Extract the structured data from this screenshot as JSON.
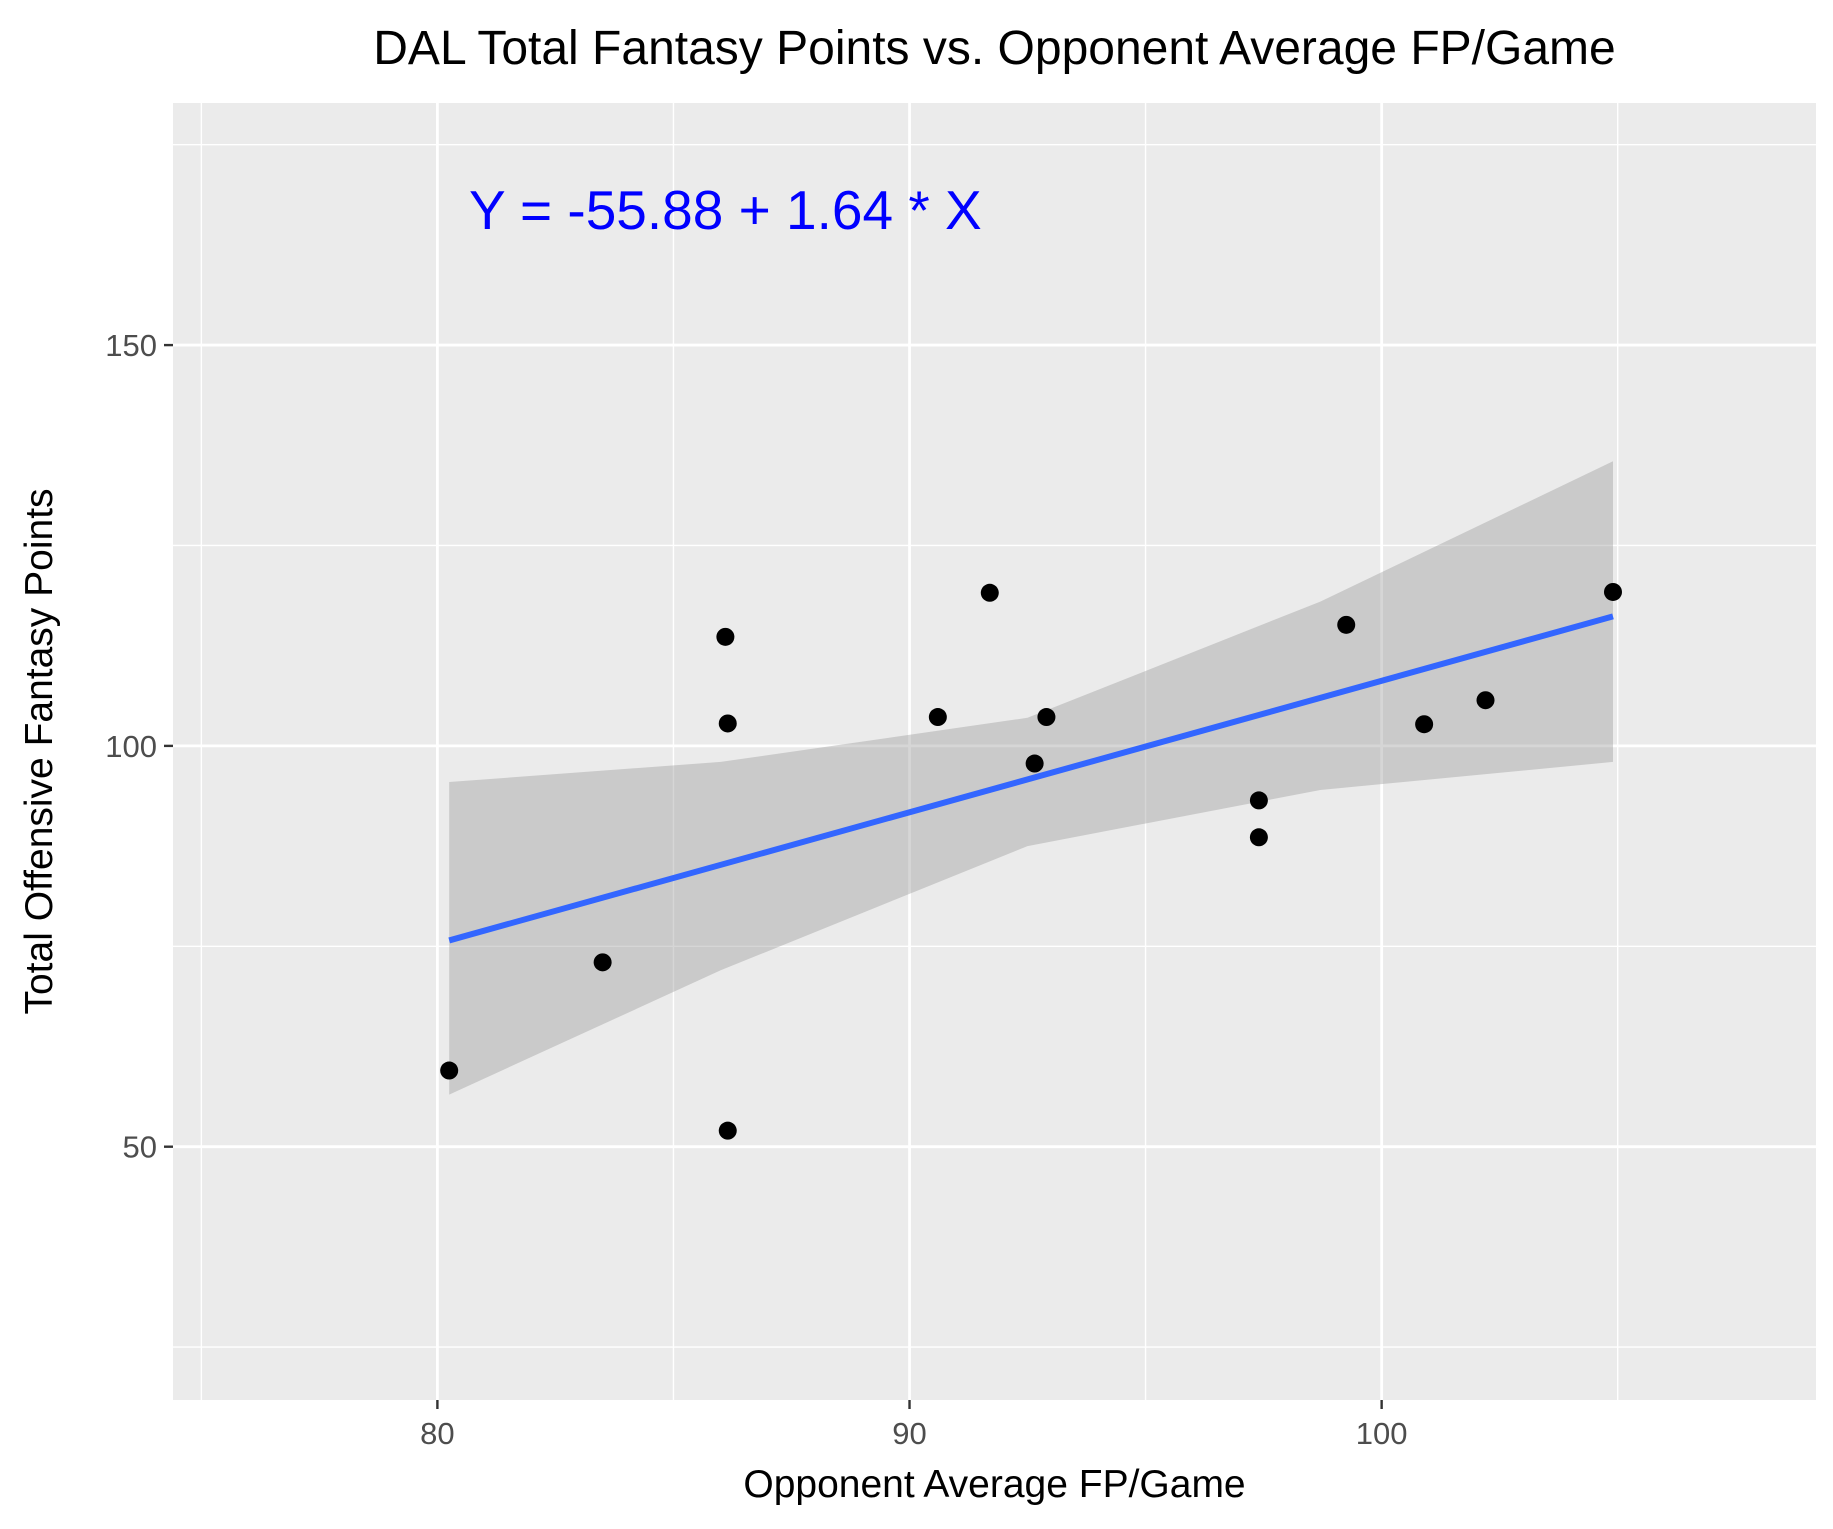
{
  "chart_data": {
    "type": "scatter",
    "title": "DAL Total Fantasy Points vs. Opponent Average FP/Game",
    "xlabel": "Opponent Average FP/Game",
    "ylabel": "Total Offensive Fantasy Points",
    "xlim": [
      74.4,
      109.2
    ],
    "ylim": [
      18.4,
      180.2
    ],
    "x_ticks": [
      80,
      90,
      100
    ],
    "y_ticks": [
      50,
      100,
      150
    ],
    "x_tick_labels": [
      "80",
      "90",
      "100"
    ],
    "y_tick_labels": [
      "50",
      "100",
      "150"
    ],
    "grid": true,
    "points": [
      {
        "x": 80.25,
        "y": 59.5
      },
      {
        "x": 83.5,
        "y": 73.0
      },
      {
        "x": 86.1,
        "y": 113.6
      },
      {
        "x": 86.15,
        "y": 102.8
      },
      {
        "x": 86.15,
        "y": 52.0
      },
      {
        "x": 90.6,
        "y": 103.6
      },
      {
        "x": 91.7,
        "y": 119.1
      },
      {
        "x": 92.65,
        "y": 97.8
      },
      {
        "x": 92.9,
        "y": 103.6
      },
      {
        "x": 97.4,
        "y": 93.2
      },
      {
        "x": 97.4,
        "y": 88.6
      },
      {
        "x": 99.25,
        "y": 115.1
      },
      {
        "x": 100.9,
        "y": 102.7
      },
      {
        "x": 102.2,
        "y": 105.7
      },
      {
        "x": 104.9,
        "y": 119.2
      }
    ],
    "regression": {
      "intercept": -55.88,
      "slope": 1.64,
      "x_range": [
        80.25,
        104.9
      ],
      "color": "#3366ff",
      "confidence_band": {
        "x": [
          80.25,
          86.0,
          92.5,
          98.7,
          104.9
        ],
        "lower": [
          56.5,
          72.0,
          87.5,
          94.5,
          98.0
        ],
        "upper": [
          95.5,
          98.0,
          103.5,
          118.0,
          135.5
        ],
        "color": "#999999"
      }
    },
    "annotation": {
      "text": "Y = -55.88 + 1.64 * X",
      "color": "#0000ff",
      "x": 86.1,
      "y": 167
    },
    "colors": {
      "panel_background": "#ebebeb",
      "grid_line": "#ffffff",
      "point": "#000000"
    }
  }
}
